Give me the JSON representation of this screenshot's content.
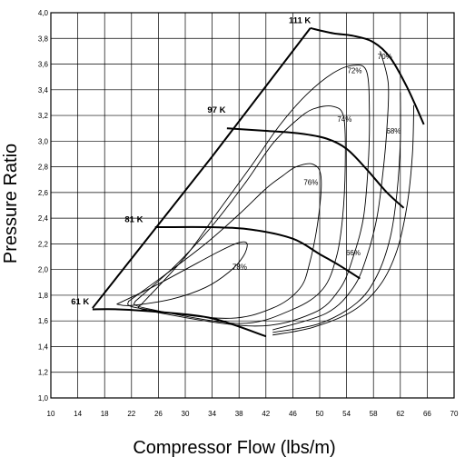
{
  "chart_data": {
    "type": "line",
    "xlabel": "Compressor Flow (lbs/m)",
    "ylabel": "Pressure Ratio",
    "xlim": [
      10,
      70
    ],
    "ylim": [
      1.0,
      4.0
    ],
    "x_ticks": [
      "10",
      "14",
      "18",
      "22",
      "26",
      "30",
      "34",
      "38",
      "42",
      "46",
      "50",
      "54",
      "58",
      "62",
      "66",
      "70"
    ],
    "y_ticks": [
      "1,0",
      "1,2",
      "1,4",
      "1,6",
      "1,8",
      "2,0",
      "2,2",
      "2,4",
      "2,6",
      "2,8",
      "3,0",
      "3,2",
      "3,4",
      "3,6",
      "3,8",
      "4,0"
    ],
    "grid": true,
    "surge_line": [
      [
        16.2,
        1.7
      ],
      [
        34.0,
        2.88
      ],
      [
        48.6,
        3.88
      ]
    ],
    "speed_lines": [
      {
        "label": "61 K",
        "label_at": [
          13.0,
          1.73
        ],
        "points": [
          [
            16.2,
            1.69
          ],
          [
            20,
            1.69
          ],
          [
            26,
            1.67
          ],
          [
            34,
            1.62
          ],
          [
            42,
            1.48
          ]
        ]
      },
      {
        "label": "81 K",
        "label_at": [
          21.0,
          2.37
        ],
        "points": [
          [
            25.5,
            2.33
          ],
          [
            34,
            2.33
          ],
          [
            40,
            2.31
          ],
          [
            46,
            2.24
          ],
          [
            50,
            2.12
          ],
          [
            53,
            2.03
          ],
          [
            56,
            1.93
          ]
        ]
      },
      {
        "label": "97 K",
        "label_at": [
          33.3,
          3.22
        ],
        "points": [
          [
            36.2,
            3.1
          ],
          [
            42,
            3.08
          ],
          [
            47,
            3.06
          ],
          [
            51,
            3.02
          ],
          [
            54,
            2.94
          ],
          [
            57,
            2.78
          ],
          [
            60,
            2.6
          ],
          [
            62.5,
            2.48
          ]
        ]
      },
      {
        "label": "111 K",
        "label_at": [
          45.4,
          3.92
        ],
        "points": [
          [
            48.6,
            3.88
          ],
          [
            52,
            3.84
          ],
          [
            55,
            3.82
          ],
          [
            58,
            3.77
          ],
          [
            60.5,
            3.65
          ],
          [
            63,
            3.42
          ],
          [
            65.5,
            3.13
          ]
        ]
      }
    ],
    "efficiency_islands": [
      {
        "label": "78%",
        "label_at": [
          38.1,
          2.0
        ],
        "points": [
          [
            19.8,
            1.73
          ],
          [
            25,
            1.86
          ],
          [
            30,
            2.0
          ],
          [
            35,
            2.14
          ],
          [
            38,
            2.21
          ],
          [
            39.2,
            2.2
          ],
          [
            38.6,
            2.1
          ],
          [
            36.5,
            1.98
          ],
          [
            33,
            1.86
          ],
          [
            28,
            1.77
          ],
          [
            22,
            1.72
          ],
          [
            19.8,
            1.73
          ]
        ]
      },
      {
        "label": "76%",
        "label_at": [
          48.7,
          2.66
        ],
        "points": [
          [
            21.5,
            1.75
          ],
          [
            27,
            1.96
          ],
          [
            33,
            2.2
          ],
          [
            38,
            2.43
          ],
          [
            42,
            2.63
          ],
          [
            44.5,
            2.73
          ],
          [
            46.5,
            2.8
          ],
          [
            49,
            2.82
          ],
          [
            50.2,
            2.72
          ],
          [
            49.8,
            2.4
          ],
          [
            48.5,
            2.05
          ],
          [
            47,
            1.85
          ],
          [
            43,
            1.7
          ],
          [
            36,
            1.62
          ],
          [
            23,
            1.7
          ],
          [
            21.5,
            1.75
          ]
        ]
      },
      {
        "label": "74%",
        "label_at": [
          53.7,
          3.15
        ],
        "points": [
          [
            22.5,
            1.75
          ],
          [
            28.5,
            2.03
          ],
          [
            34,
            2.34
          ],
          [
            39,
            2.68
          ],
          [
            43,
            2.98
          ],
          [
            46.5,
            3.16
          ],
          [
            49,
            3.25
          ],
          [
            52,
            3.27
          ],
          [
            53.6,
            3.18
          ],
          [
            53.8,
            2.8
          ],
          [
            53.4,
            2.4
          ],
          [
            52.5,
            2.1
          ],
          [
            50.5,
            1.85
          ],
          [
            46,
            1.69
          ],
          [
            38,
            1.58
          ],
          [
            24,
            1.7
          ],
          [
            22.5,
            1.75
          ]
        ]
      },
      {
        "label": "72%",
        "label_at": [
          55.2,
          3.53
        ],
        "points": [
          [
            23.5,
            1.73
          ],
          [
            30,
            2.1
          ],
          [
            35,
            2.46
          ],
          [
            40,
            2.82
          ],
          [
            44,
            3.12
          ],
          [
            48,
            3.36
          ],
          [
            52,
            3.53
          ],
          [
            55,
            3.59
          ],
          [
            57,
            3.54
          ],
          [
            57.4,
            3.2
          ],
          [
            57.2,
            2.8
          ],
          [
            56.5,
            2.4
          ],
          [
            55,
            2.1
          ],
          [
            53,
            1.85
          ],
          [
            49,
            1.66
          ],
          [
            40,
            1.56
          ],
          [
            24.5,
            1.68
          ],
          [
            23.5,
            1.73
          ]
        ]
      },
      {
        "label": "70%",
        "label_at": [
          59.7,
          3.64
        ],
        "points": [
          [
            59,
            3.7
          ],
          [
            60.2,
            3.45
          ],
          [
            60,
            3.1
          ],
          [
            59.4,
            2.75
          ],
          [
            58.5,
            2.4
          ],
          [
            57,
            2.1
          ],
          [
            55,
            1.86
          ],
          [
            51,
            1.66
          ],
          [
            43,
            1.53
          ]
        ]
      },
      {
        "label": "68%",
        "label_at": [
          61.0,
          3.06
        ],
        "points": [
          [
            62,
            3.38
          ],
          [
            62,
            3.0
          ],
          [
            61.5,
            2.6
          ],
          [
            60.5,
            2.25
          ],
          [
            58.5,
            1.95
          ],
          [
            55.5,
            1.74
          ],
          [
            50,
            1.58
          ],
          [
            43,
            1.51
          ]
        ]
      },
      {
        "label": "66%",
        "label_at": [
          55.0,
          2.11
        ],
        "points": [
          [
            64,
            3.28
          ],
          [
            63.8,
            2.9
          ],
          [
            63,
            2.5
          ],
          [
            61.5,
            2.15
          ],
          [
            59,
            1.88
          ],
          [
            55,
            1.68
          ],
          [
            49,
            1.55
          ],
          [
            43,
            1.49
          ]
        ]
      }
    ]
  }
}
